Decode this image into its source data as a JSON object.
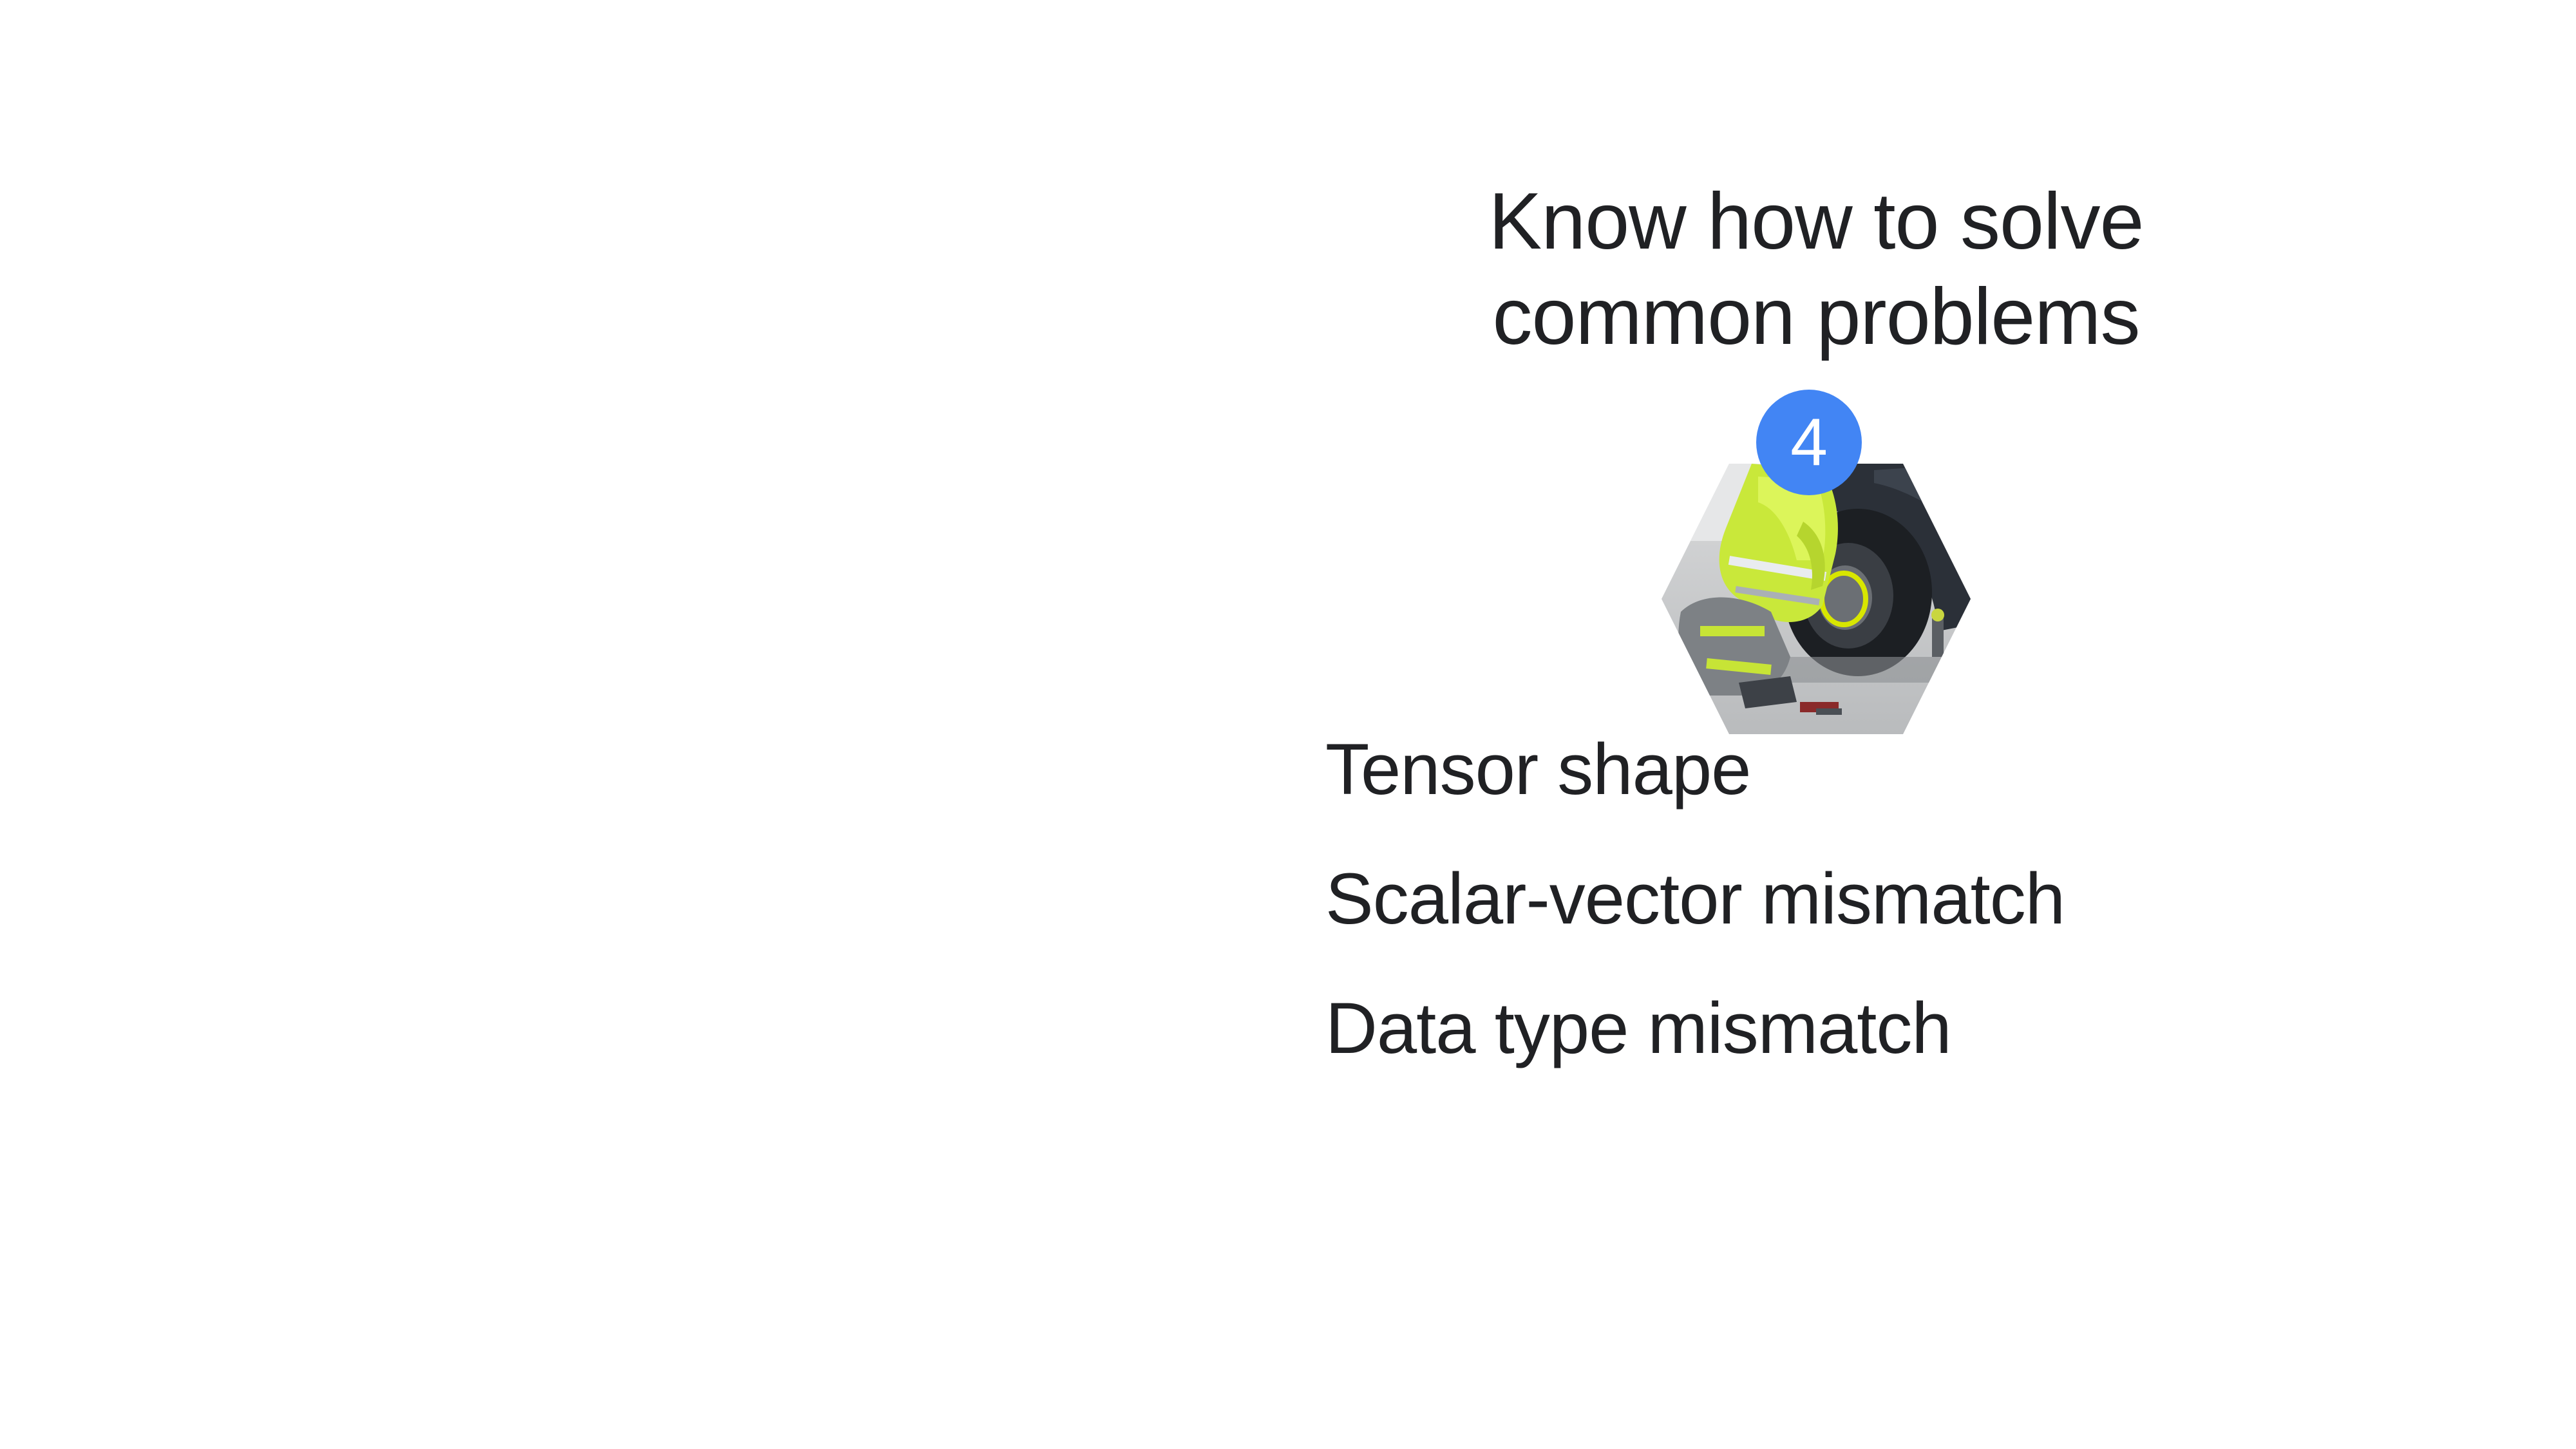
{
  "slide": {
    "title_lines": [
      "Know how to solve",
      "common problems"
    ],
    "badge_number": "4",
    "image_icon": "mechanic-changing-tire-icon",
    "bullets": [
      "Tensor shape",
      "Scalar-vector mismatch",
      "Data type mismatch"
    ],
    "colors": {
      "background": "#ffffff",
      "text": "#202124",
      "badge": "#4285f4",
      "badge_text": "#ffffff"
    }
  }
}
